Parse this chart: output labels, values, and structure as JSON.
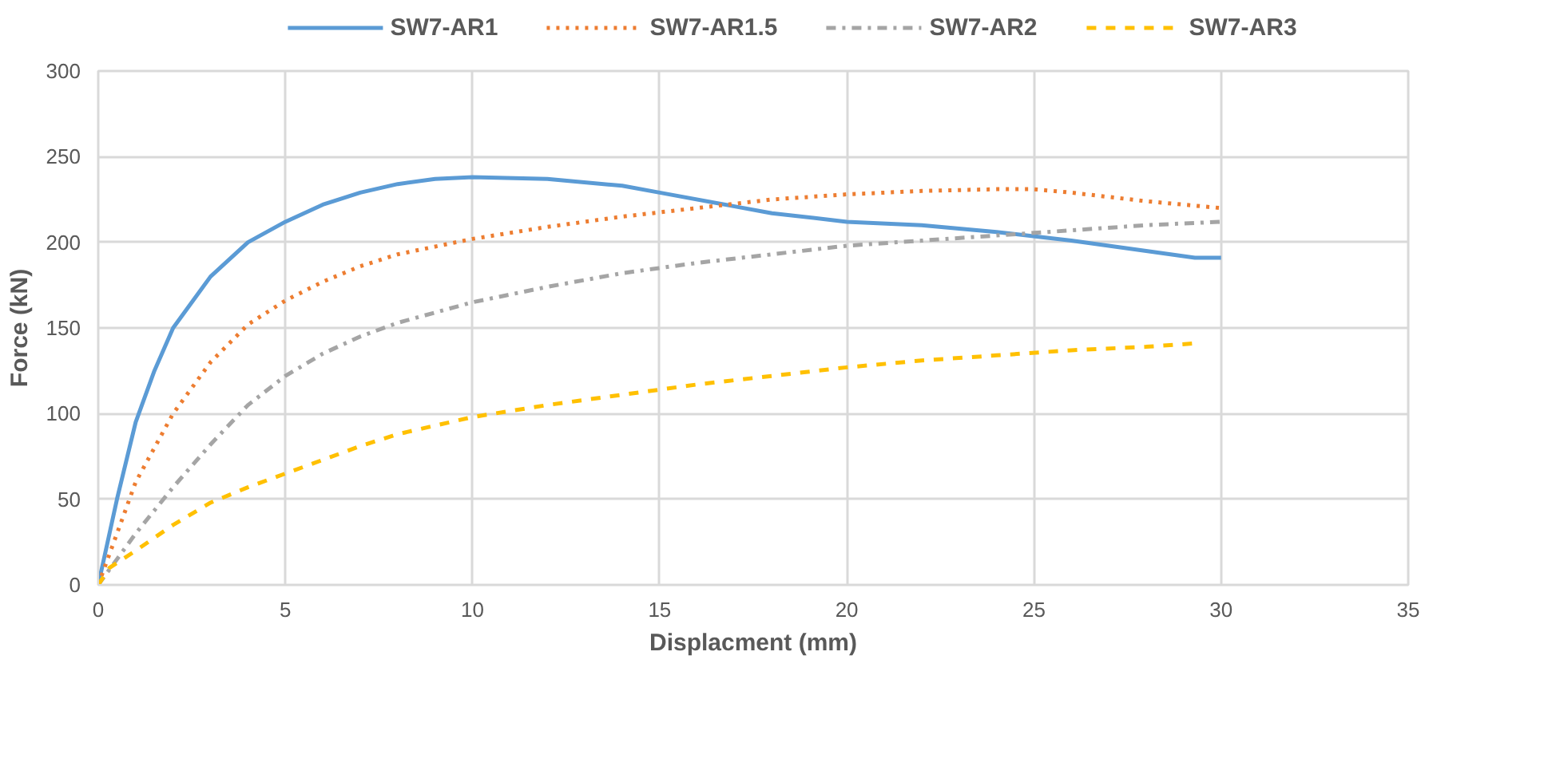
{
  "chart_data": {
    "type": "line",
    "xlabel": "Displacment (mm)",
    "ylabel": "Force (kN)",
    "xlim": [
      0,
      35
    ],
    "ylim": [
      0,
      300
    ],
    "xticks": [
      0,
      5,
      10,
      15,
      20,
      25,
      30,
      35
    ],
    "yticks": [
      0,
      50,
      100,
      150,
      200,
      250,
      300
    ],
    "grid": true,
    "legend": "top",
    "marker": "none",
    "series": [
      {
        "name": "SW7-AR1",
        "color": "#5b9bd5",
        "line_style": "solid",
        "x": [
          0,
          0.5,
          1,
          1.5,
          2,
          3,
          4,
          5,
          6,
          7,
          8,
          9,
          10,
          12,
          14,
          15,
          17,
          18,
          20,
          22,
          24,
          26,
          28,
          29.3,
          30
        ],
        "values": [
          0,
          50,
          95,
          125,
          150,
          180,
          200,
          212,
          222,
          229,
          234,
          237,
          238,
          237,
          233,
          229,
          221,
          217,
          212,
          210,
          206,
          201,
          195,
          191,
          191
        ]
      },
      {
        "name": "SW7-AR1.5",
        "color": "#ed7d31",
        "line_style": "dotted",
        "x": [
          0,
          0.5,
          1,
          2,
          3,
          4,
          5,
          6,
          7,
          8,
          10,
          12,
          14,
          16,
          18,
          20,
          22,
          24,
          25,
          26,
          28,
          30
        ],
        "values": [
          0,
          30,
          60,
          100,
          130,
          152,
          166,
          177,
          186,
          193,
          202,
          209,
          215,
          220,
          225,
          228,
          230,
          231,
          231,
          229,
          224,
          220
        ]
      },
      {
        "name": "SW7-AR2",
        "color": "#a5a5a5",
        "line_style": "dashdot",
        "x": [
          0,
          1,
          2,
          3,
          4,
          5,
          6,
          7,
          8,
          10,
          12,
          14,
          16,
          18,
          20,
          22,
          24,
          26,
          28,
          30
        ],
        "values": [
          0,
          30,
          57,
          82,
          105,
          122,
          135,
          145,
          153,
          165,
          174,
          182,
          188,
          193,
          198,
          201,
          204,
          207,
          210,
          212
        ]
      },
      {
        "name": "SW7-AR3",
        "color": "#ffc000",
        "line_style": "dashed",
        "x": [
          0,
          0.3,
          1,
          2,
          3,
          4,
          5,
          6,
          7,
          8,
          10,
          12,
          14,
          16,
          18,
          20,
          22,
          24,
          26,
          28,
          29.3
        ],
        "values": [
          0,
          10,
          20,
          35,
          48,
          57,
          65,
          73,
          81,
          88,
          98,
          105,
          111,
          117,
          122,
          127,
          131,
          134,
          137,
          139,
          141
        ]
      }
    ]
  }
}
